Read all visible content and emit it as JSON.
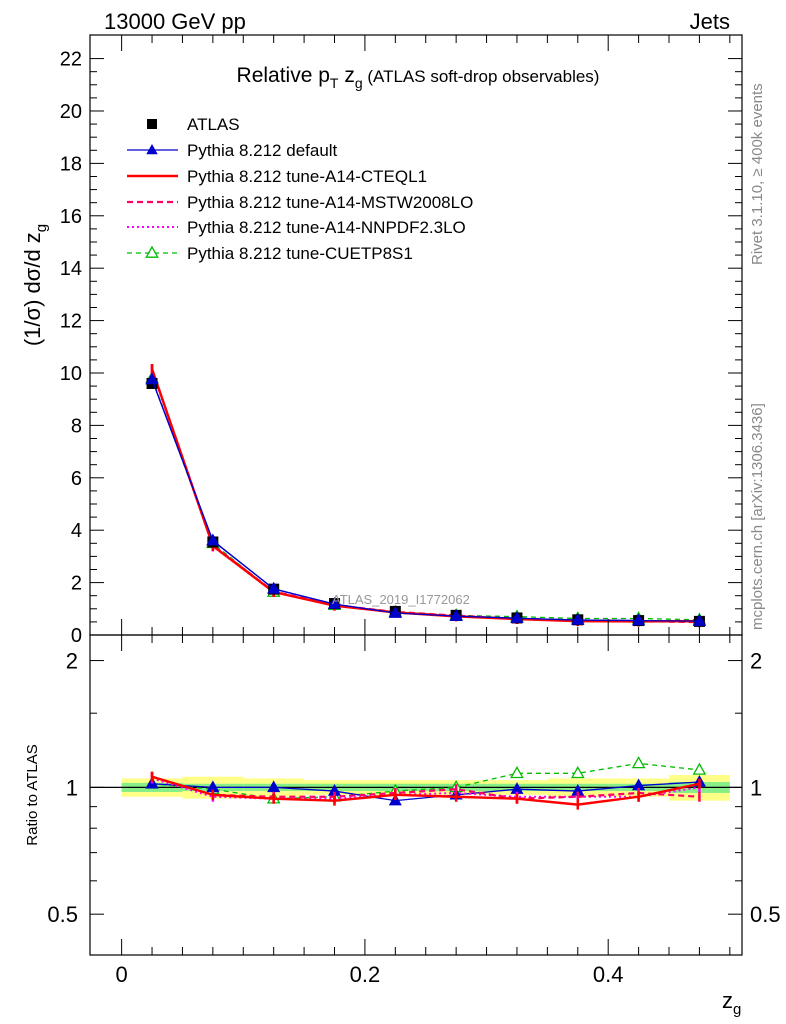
{
  "header": {
    "energy": "13000 GeV pp",
    "process": "Jets",
    "rivet_label": "Rivet 3.1.10, ≥ 400k events",
    "mcplots_label": "mcplots.cern.ch [arXiv:1306.3436]",
    "analysis_id": "ATLAS_2019_I1772062"
  },
  "colors": {
    "data": "#000000",
    "default": "#0000cc",
    "cteql1": "#ff0000",
    "mstw": "#ff0066",
    "nnpdf": "#ff00ff",
    "cuetp8s1": "#00bb00",
    "band_inner": "#88ee88",
    "band_outer": "#ffff88"
  },
  "chart_data": [
    {
      "type": "line",
      "panel": "main",
      "title_parts": {
        "a": "Relative p",
        "b": "T",
        "c": " z",
        "d": "g",
        "e": " (ATLAS soft-drop observables)"
      },
      "ylabel_parts": {
        "a": "(1/σ) dσ/d z",
        "b": "g"
      },
      "xlim": [
        -0.026,
        0.51
      ],
      "ylim": [
        0,
        22.9
      ],
      "yticks": [
        0,
        2,
        4,
        6,
        8,
        10,
        12,
        14,
        16,
        18,
        20,
        22
      ],
      "ytick_labels": [
        "0",
        "2",
        "4",
        "6",
        "8",
        "10",
        "12",
        "14",
        "16",
        "18",
        "20",
        "22"
      ],
      "x": [
        0.025,
        0.075,
        0.125,
        0.175,
        0.225,
        0.275,
        0.325,
        0.375,
        0.425,
        0.475
      ],
      "legend": {
        "data": "ATLAS",
        "default": "Pythia 8.212 default",
        "cteql1": "Pythia 8.212 tune-A14-CTEQL1",
        "mstw": "Pythia 8.212 tune-A14-MSTW2008LO",
        "nnpdf": "Pythia 8.212 tune-A14-NNPDF2.3LO",
        "cuetp8s1": "Pythia 8.212 tune-CUETP8S1"
      },
      "series": [
        {
          "key": "data",
          "name": "ATLAS",
          "values": [
            9.6,
            3.55,
            1.75,
            1.2,
            0.9,
            0.75,
            0.65,
            0.58,
            0.55,
            0.52
          ]
        },
        {
          "key": "default",
          "name": "Pythia 8.212 default",
          "values": [
            9.75,
            3.6,
            1.76,
            1.18,
            0.84,
            0.72,
            0.64,
            0.57,
            0.55,
            0.53
          ]
        },
        {
          "key": "cteql1",
          "name": "Pythia 8.212 tune-A14-CTEQL1",
          "values": [
            10.15,
            3.4,
            1.64,
            1.12,
            0.86,
            0.71,
            0.61,
            0.53,
            0.52,
            0.53
          ]
        },
        {
          "key": "mstw",
          "name": "Pythia 8.212 tune-A14-MSTW2008LO",
          "values": [
            10.15,
            3.42,
            1.66,
            1.14,
            0.88,
            0.74,
            0.61,
            0.55,
            0.53,
            0.49
          ]
        },
        {
          "key": "nnpdf",
          "name": "Pythia 8.212 tune-A14-NNPDF2.3LO",
          "values": [
            10.1,
            3.38,
            1.64,
            1.13,
            0.86,
            0.73,
            0.62,
            0.55,
            0.52,
            0.52
          ]
        },
        {
          "key": "cuetp8s1",
          "name": "Pythia 8.212 tune-CUETP8S1",
          "values": [
            9.8,
            3.5,
            1.64,
            1.14,
            0.88,
            0.75,
            0.7,
            0.63,
            0.63,
            0.58
          ]
        }
      ]
    },
    {
      "type": "line",
      "panel": "ratio",
      "ylabel": "Ratio to ATLAS",
      "xlabel_parts": {
        "a": "z",
        "b": "g"
      },
      "xlim": [
        -0.026,
        0.51
      ],
      "ylim": [
        0.4,
        2.3
      ],
      "xticks": [
        0,
        0.2,
        0.4
      ],
      "xtick_labels": [
        "0",
        "0.2",
        "0.4"
      ],
      "yticks": [
        0.5,
        1,
        2
      ],
      "ytick_labels": [
        "0.5",
        "1",
        "2"
      ],
      "x": [
        0.025,
        0.075,
        0.125,
        0.175,
        0.225,
        0.275,
        0.325,
        0.375,
        0.425,
        0.475
      ],
      "band_inner": [
        0.025,
        0.02,
        0.02,
        0.02,
        0.02,
        0.02,
        0.02,
        0.02,
        0.02,
        0.03
      ],
      "band_outer": [
        0.05,
        0.06,
        0.05,
        0.04,
        0.04,
        0.04,
        0.04,
        0.05,
        0.05,
        0.07
      ],
      "series": [
        {
          "key": "default",
          "values": [
            1.02,
            1.0,
            1.0,
            0.98,
            0.93,
            0.96,
            0.99,
            0.98,
            1.01,
            1.03
          ]
        },
        {
          "key": "cteql1",
          "values": [
            1.06,
            0.96,
            0.94,
            0.93,
            0.96,
            0.95,
            0.94,
            0.91,
            0.95,
            1.02
          ]
        },
        {
          "key": "mstw",
          "values": [
            1.06,
            0.96,
            0.95,
            0.95,
            0.97,
            0.99,
            0.94,
            0.95,
            0.97,
            0.95
          ]
        },
        {
          "key": "nnpdf",
          "values": [
            1.05,
            0.95,
            0.94,
            0.94,
            0.96,
            0.97,
            0.95,
            0.95,
            0.95,
            1.0
          ]
        },
        {
          "key": "cuetp8s1",
          "values": [
            1.02,
            0.99,
            0.94,
            0.95,
            0.98,
            1.0,
            1.08,
            1.08,
            1.14,
            1.1
          ]
        }
      ]
    }
  ]
}
